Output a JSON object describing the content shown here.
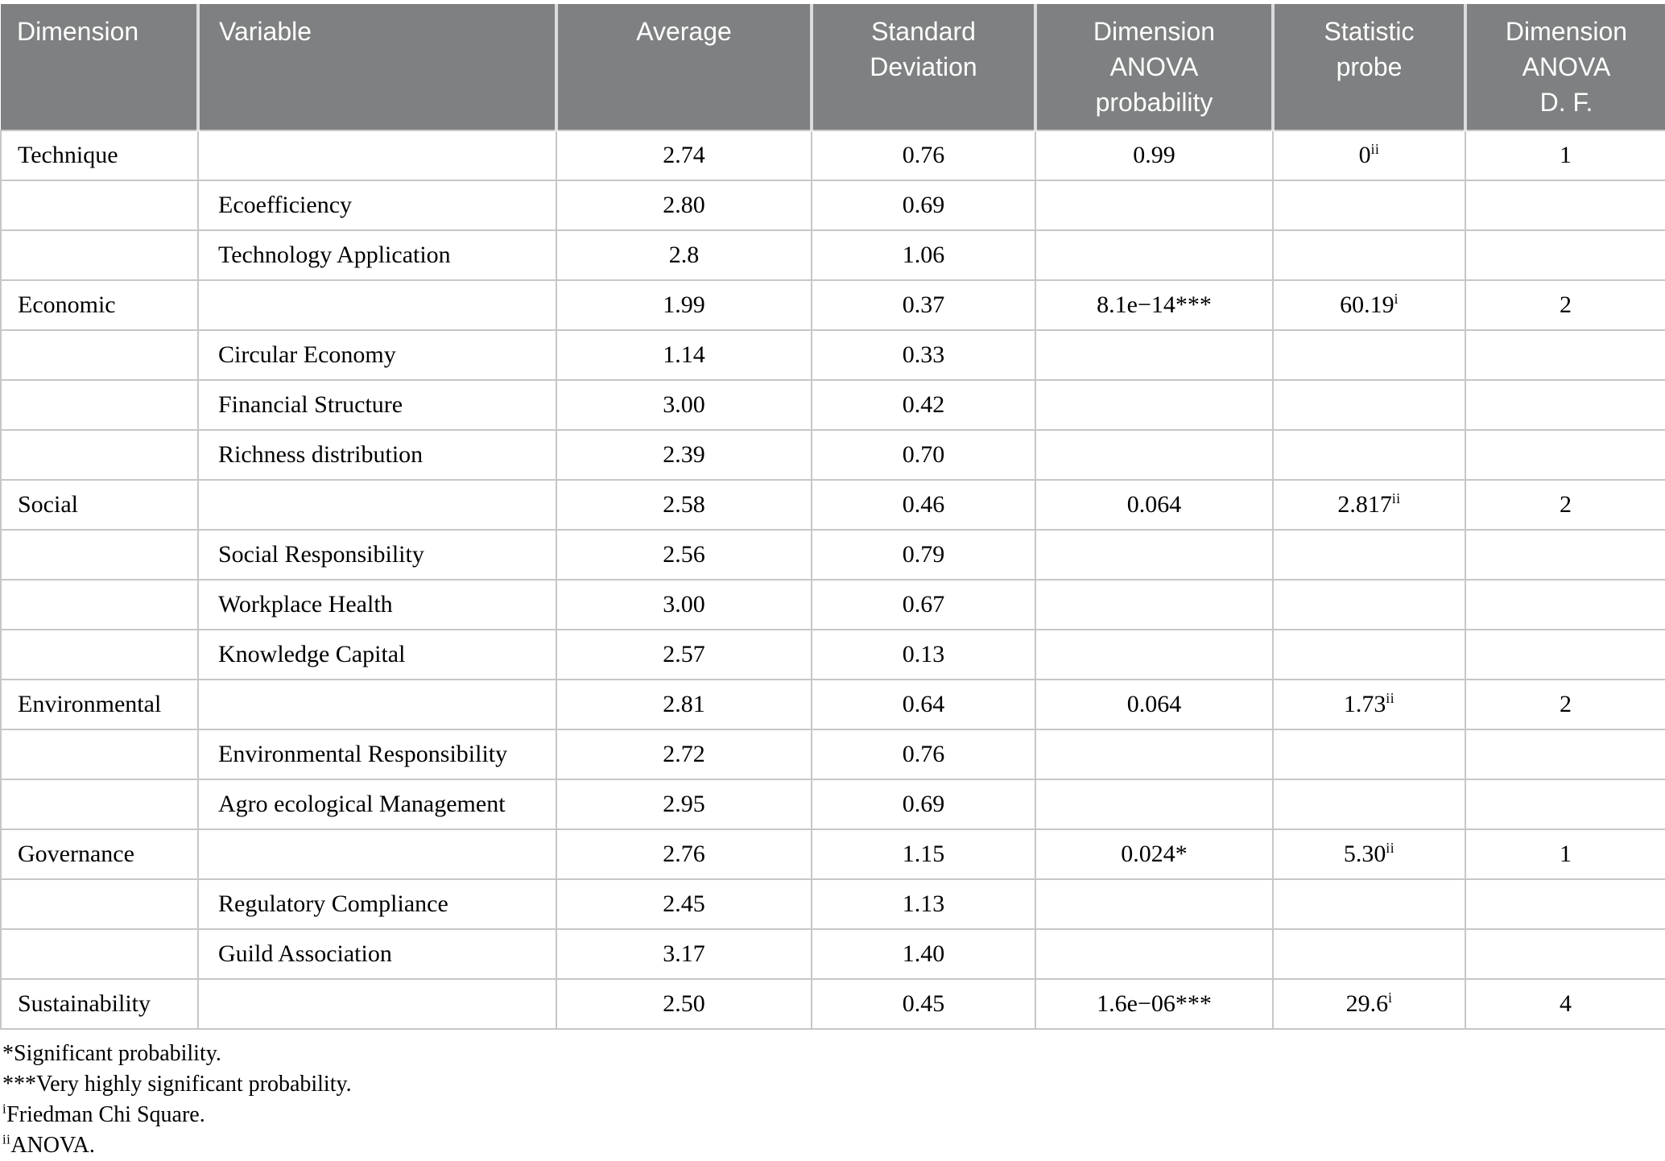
{
  "colors": {
    "header_bg": "#7f8081",
    "header_text": "#ffffff",
    "grid_line": "#c7c7c7",
    "body_text": "#000000"
  },
  "table": {
    "columns": [
      {
        "label": "Dimension",
        "align": "left"
      },
      {
        "label": "Variable",
        "align": "left"
      },
      {
        "label": "Average",
        "align": "center"
      },
      {
        "label": "Standard\nDeviation",
        "align": "center"
      },
      {
        "label": "Dimension\nANOVA\nprobability",
        "align": "center"
      },
      {
        "label": "Statistic\nprobe",
        "align": "center"
      },
      {
        "label": "Dimension\nANOVA\nD. F.",
        "align": "center"
      }
    ],
    "rows": [
      {
        "cells": [
          {
            "text": "Technique"
          },
          {
            "text": ""
          },
          {
            "text": "2.74"
          },
          {
            "text": "0.76"
          },
          {
            "text": "0.99"
          },
          {
            "text": "0",
            "sup": "ii"
          },
          {
            "text": "1"
          }
        ]
      },
      {
        "cells": [
          {
            "text": ""
          },
          {
            "text": "Ecoefficiency"
          },
          {
            "text": "2.80"
          },
          {
            "text": "0.69"
          },
          {
            "text": ""
          },
          {
            "text": ""
          },
          {
            "text": ""
          }
        ]
      },
      {
        "cells": [
          {
            "text": ""
          },
          {
            "text": "Technology Application"
          },
          {
            "text": "2.8"
          },
          {
            "text": "1.06"
          },
          {
            "text": ""
          },
          {
            "text": ""
          },
          {
            "text": ""
          }
        ]
      },
      {
        "cells": [
          {
            "text": "Economic"
          },
          {
            "text": ""
          },
          {
            "text": "1.99"
          },
          {
            "text": "0.37"
          },
          {
            "text": "8.1e−14***"
          },
          {
            "text": "60.19",
            "sup": "i"
          },
          {
            "text": "2"
          }
        ]
      },
      {
        "cells": [
          {
            "text": ""
          },
          {
            "text": "Circular Economy"
          },
          {
            "text": "1.14"
          },
          {
            "text": "0.33"
          },
          {
            "text": ""
          },
          {
            "text": ""
          },
          {
            "text": ""
          }
        ]
      },
      {
        "cells": [
          {
            "text": ""
          },
          {
            "text": "Financial Structure"
          },
          {
            "text": "3.00"
          },
          {
            "text": "0.42"
          },
          {
            "text": ""
          },
          {
            "text": ""
          },
          {
            "text": ""
          }
        ]
      },
      {
        "cells": [
          {
            "text": ""
          },
          {
            "text": "Richness distribution"
          },
          {
            "text": "2.39"
          },
          {
            "text": "0.70"
          },
          {
            "text": ""
          },
          {
            "text": ""
          },
          {
            "text": ""
          }
        ]
      },
      {
        "cells": [
          {
            "text": "Social"
          },
          {
            "text": ""
          },
          {
            "text": "2.58"
          },
          {
            "text": "0.46"
          },
          {
            "text": "0.064"
          },
          {
            "text": "2.817",
            "sup": "ii"
          },
          {
            "text": "2"
          }
        ]
      },
      {
        "cells": [
          {
            "text": ""
          },
          {
            "text": "Social Responsibility"
          },
          {
            "text": "2.56"
          },
          {
            "text": "0.79"
          },
          {
            "text": ""
          },
          {
            "text": ""
          },
          {
            "text": ""
          }
        ]
      },
      {
        "cells": [
          {
            "text": ""
          },
          {
            "text": "Workplace Health"
          },
          {
            "text": "3.00"
          },
          {
            "text": "0.67"
          },
          {
            "text": ""
          },
          {
            "text": ""
          },
          {
            "text": ""
          }
        ]
      },
      {
        "cells": [
          {
            "text": ""
          },
          {
            "text": "Knowledge Capital"
          },
          {
            "text": "2.57"
          },
          {
            "text": "0.13"
          },
          {
            "text": ""
          },
          {
            "text": ""
          },
          {
            "text": ""
          }
        ]
      },
      {
        "cells": [
          {
            "text": "Environmental"
          },
          {
            "text": ""
          },
          {
            "text": "2.81"
          },
          {
            "text": "0.64"
          },
          {
            "text": "0.064"
          },
          {
            "text": "1.73",
            "sup": "ii"
          },
          {
            "text": "2"
          }
        ]
      },
      {
        "cells": [
          {
            "text": ""
          },
          {
            "text": "Environmental Responsibility"
          },
          {
            "text": "2.72"
          },
          {
            "text": "0.76"
          },
          {
            "text": ""
          },
          {
            "text": ""
          },
          {
            "text": ""
          }
        ]
      },
      {
        "cells": [
          {
            "text": ""
          },
          {
            "text": "Agro ecological Management"
          },
          {
            "text": "2.95"
          },
          {
            "text": "0.69"
          },
          {
            "text": ""
          },
          {
            "text": ""
          },
          {
            "text": ""
          }
        ]
      },
      {
        "cells": [
          {
            "text": "Governance"
          },
          {
            "text": ""
          },
          {
            "text": "2.76"
          },
          {
            "text": "1.15"
          },
          {
            "text": "0.024*"
          },
          {
            "text": "5.30",
            "sup": "ii"
          },
          {
            "text": "1"
          }
        ]
      },
      {
        "cells": [
          {
            "text": ""
          },
          {
            "text": "Regulatory Compliance"
          },
          {
            "text": "2.45"
          },
          {
            "text": "1.13"
          },
          {
            "text": ""
          },
          {
            "text": ""
          },
          {
            "text": ""
          }
        ]
      },
      {
        "cells": [
          {
            "text": ""
          },
          {
            "text": "Guild Association"
          },
          {
            "text": "3.17"
          },
          {
            "text": "1.40"
          },
          {
            "text": ""
          },
          {
            "text": ""
          },
          {
            "text": ""
          }
        ]
      },
      {
        "cells": [
          {
            "text": "Sustainability"
          },
          {
            "text": ""
          },
          {
            "text": "2.50"
          },
          {
            "text": "0.45"
          },
          {
            "text": "1.6e−06***"
          },
          {
            "text": "29.6",
            "sup": "i"
          },
          {
            "text": "4"
          }
        ]
      }
    ]
  },
  "footnotes": [
    {
      "sup": "",
      "text": "*Significant probability."
    },
    {
      "sup": "",
      "text": "***Very highly significant probability."
    },
    {
      "sup": "i",
      "text": "Friedman Chi Square."
    },
    {
      "sup": "ii",
      "text": "ANOVA."
    }
  ]
}
